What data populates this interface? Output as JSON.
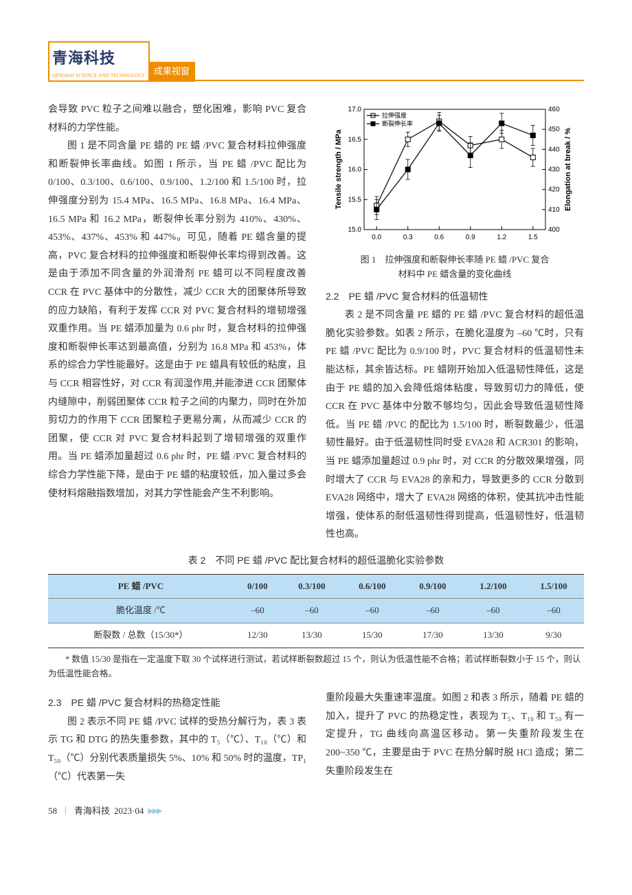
{
  "header": {
    "journal": "青海科技",
    "journal_sub": "QINGHAI SCIENCE AND TECHNOLOGY",
    "column_tag": "成果视窗"
  },
  "left_paras": [
    "会导致 PVC 粒子之间难以融合，塑化困难，影响 PVC 复合材料的力学性能。",
    "图 1 是不同含量 PE 蜡的 PE 蜡 /PVC 复合材料拉伸强度和断裂伸长率曲线。如图 1 所示，当 PE 蜡 /PVC 配比为 0/100、0.3/100、0.6/100、0.9/100、1.2/100 和 1.5/100 时，拉伸强度分别为 15.4 MPa、16.5 MPa、16.8 MPa、16.4 MPa、16.5 MPa 和 16.2 MPa，断裂伸长率分别为 410%、430%、453%、437%、453% 和 447%。可见，随着 PE 蜡含量的提高，PVC 复合材料的拉伸强度和断裂伸长率均得到改善。这是由于添加不同含量的外润滑剂 PE 蜡可以不同程度改善 CCR 在 PVC 基体中的分散性，减少 CCR 大的团聚体所导致的应力缺陷，有利于发挥 CCR 对 PVC 复合材料的增韧增强双重作用。当 PE 蜡添加量为 0.6 phr 时，复合材料的拉伸强度和断裂伸长率达到最高值，分别为 16.8 MPa 和 453%，体系的综合力学性能最好。这是由于 PE 蜡具有较低的粘度，且与 CCR 相容性好，对 CCR 有润湿作用,并能渗进 CCR 团聚体内缝隙中，削弱团聚体 CCR 粒子之间的内聚力，同时在外加剪切力的作用下 CCR 团聚粒子更易分离，从而减少 CCR 的团聚，使 CCR 对 PVC 复合材料起到了增韧增强的双重作用。当 PE 蜡添加量超过 0.6 phr 时，PE 蜡 /PVC 复合材料的综合力学性能下降，是由于 PE 蜡的粘度较低，加入量过多会使材料熔融指数增加，对其力学性能会产生不利影响。"
  ],
  "chart": {
    "caption_line1": "图 1　拉伸强度和断裂伸长率随 PE 蜡 /PVC 复合",
    "caption_line2": "材料中 PE 蜡含量的变化曲线",
    "y_left_label": "Tensile strength / MPa",
    "y_right_label": "Elongation at break / %",
    "legend": {
      "s1": "拉伸强度",
      "s2": "断裂伸长率"
    },
    "x_ticks": [
      "0.0",
      "0.3",
      "0.6",
      "0.9",
      "1.2",
      "1.5"
    ],
    "y_left": {
      "min": 15.0,
      "max": 17.0,
      "ticks": [
        "15.0",
        "15.5",
        "16.0",
        "16.5",
        "17.0"
      ]
    },
    "y_right": {
      "min": 400,
      "max": 460,
      "ticks": [
        "400",
        "410",
        "420",
        "430",
        "440",
        "450",
        "460"
      ]
    },
    "series_tensile": [
      15.4,
      16.5,
      16.8,
      16.4,
      16.5,
      16.2
    ],
    "series_tensile_err": [
      0.15,
      0.12,
      0.15,
      0.15,
      0.15,
      0.15
    ],
    "series_elong": [
      410,
      430,
      453,
      437,
      453,
      447
    ],
    "series_elong_err": [
      5,
      5,
      4,
      6,
      5,
      5
    ],
    "colors": {
      "axis": "#000000",
      "bg": "#ffffff",
      "series": "#000000"
    },
    "font": {
      "axis_label_pt": 10,
      "axis_title_pt": 11,
      "legend_pt": 9
    }
  },
  "sec22_title": "2.2　PE 蜡 /PVC 复合材料的低温韧性",
  "right_para": "表 2 是不同含量 PE 蜡的 PE 蜡 /PVC 复合材料的超低温脆化实验参数。如表 2 所示，在脆化温度为 –60 ℃时，只有 PE 蜡 /PVC 配比为 0.9/100 时，PVC 复合材料的低温韧性未能达标，其余皆达标。PE 蜡刚开始加入低温韧性降低，这是由于 PE 蜡的加入会降低熔体粘度，导致剪切力的降低，使 CCR 在 PVC 基体中分散不够均匀，因此会导致低温韧性降低。当 PE 蜡 /PVC 的配比为 1.5/100 时，断裂数最少，低温韧性最好。由于低温韧性同时受 EVA28 和 ACR301 的影响，当 PE 蜡添加量超过 0.9 phr 时，对 CCR 的分散效果增强，同时增大了 CCR 与 EVA28 的亲和力，导致更多的 CCR 分散到 EVA28 网络中，增大了 EVA28 网络的体积，使其抗冲击性能增强，使体系的耐低温韧性得到提高，低温韧性好，低温韧性也高。",
  "table2": {
    "caption": "表 2　不同 PE 蜡 /PVC 配比复合材料的超低温脆化实验参数",
    "headers": [
      "PE 蜡 /PVC",
      "0/100",
      "0.3/100",
      "0.6/100",
      "0.9/100",
      "1.2/100",
      "1.5/100"
    ],
    "row_temp_label": "脆化温度 /℃",
    "row_temp": [
      "–60",
      "–60",
      "–60",
      "–60",
      "–60",
      "–60"
    ],
    "row_break_label": "断裂数 / 总数（15/30*）",
    "row_break": [
      "12/30",
      "13/30",
      "15/30",
      "17/30",
      "13/30",
      "9/30"
    ],
    "note": "* 数值 15/30 是指在一定温度下取 30 个试样进行测试，若试样断裂数超过 15 个，则认为低温性能不合格；若试样断裂数小于 15 个，则认为低温性能合格。",
    "header_bg": "#bcdff5"
  },
  "sec23_title": "2.3　PE 蜡 /PVC 复合材料的热稳定性能",
  "bottom_left": "图 2 表示不同 PE 蜡 /PVC 试样的受热分解行为，表 3 表示 TG 和 DTG 的热失重参数，其中的 T₅（℃）、T₁₀（℃）和 T₅₀（℃）分别代表质量损失 5%、10% 和 50% 时的温度，TP₁（℃）代表第一失",
  "bottom_right": "重阶段最大失重速率温度。如图 2 和表 3 所示，随着 PE 蜡的加入，提升了 PVC 的热稳定性，表现为 T₅、T₁₀ 和 T₅₀ 有一定提升，TG 曲线向高温区移动。第一失重阶段发生在 200~350 ℃，主要是由于 PVC 在热分解时脱 HCl 造成；第二失重阶段发生在",
  "footer": {
    "page": "58",
    "journal": "青海科技",
    "issue": "2023·04"
  }
}
